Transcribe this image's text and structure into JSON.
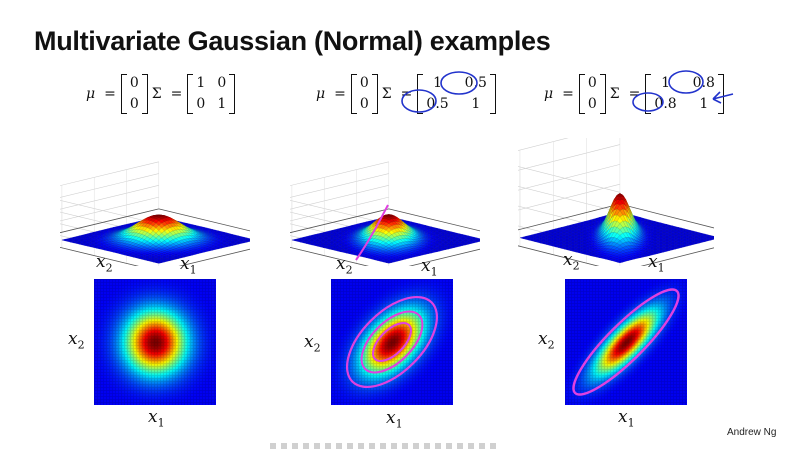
{
  "slide": {
    "title": "Multivariate Gaussian (Normal) examples",
    "author": "Andrew Ng"
  },
  "examples": [
    {
      "mu": [
        "0",
        "0"
      ],
      "sigma": [
        [
          "1",
          "0"
        ],
        [
          "0",
          "1"
        ]
      ],
      "cov": 0.0,
      "annotated": false
    },
    {
      "mu": [
        "0",
        "0"
      ],
      "sigma": [
        [
          "1",
          "0.5"
        ],
        [
          "0.5",
          "1"
        ]
      ],
      "cov": 0.5,
      "annotated": true
    },
    {
      "mu": [
        "0",
        "0"
      ],
      "sigma": [
        [
          "1",
          "0.8"
        ],
        [
          "0.8",
          "1"
        ]
      ],
      "cov": 0.8,
      "annotated": true
    }
  ],
  "symbols": {
    "mu": "μ",
    "sigma": "Σ",
    "equals": "="
  },
  "axis_labels": {
    "x1": "x",
    "x1_sub": "1",
    "x2": "x",
    "x2_sub": "2"
  },
  "colors": {
    "annotation": "#e040e0",
    "ink": "#2233cc",
    "heat_bg": "#00008f"
  }
}
